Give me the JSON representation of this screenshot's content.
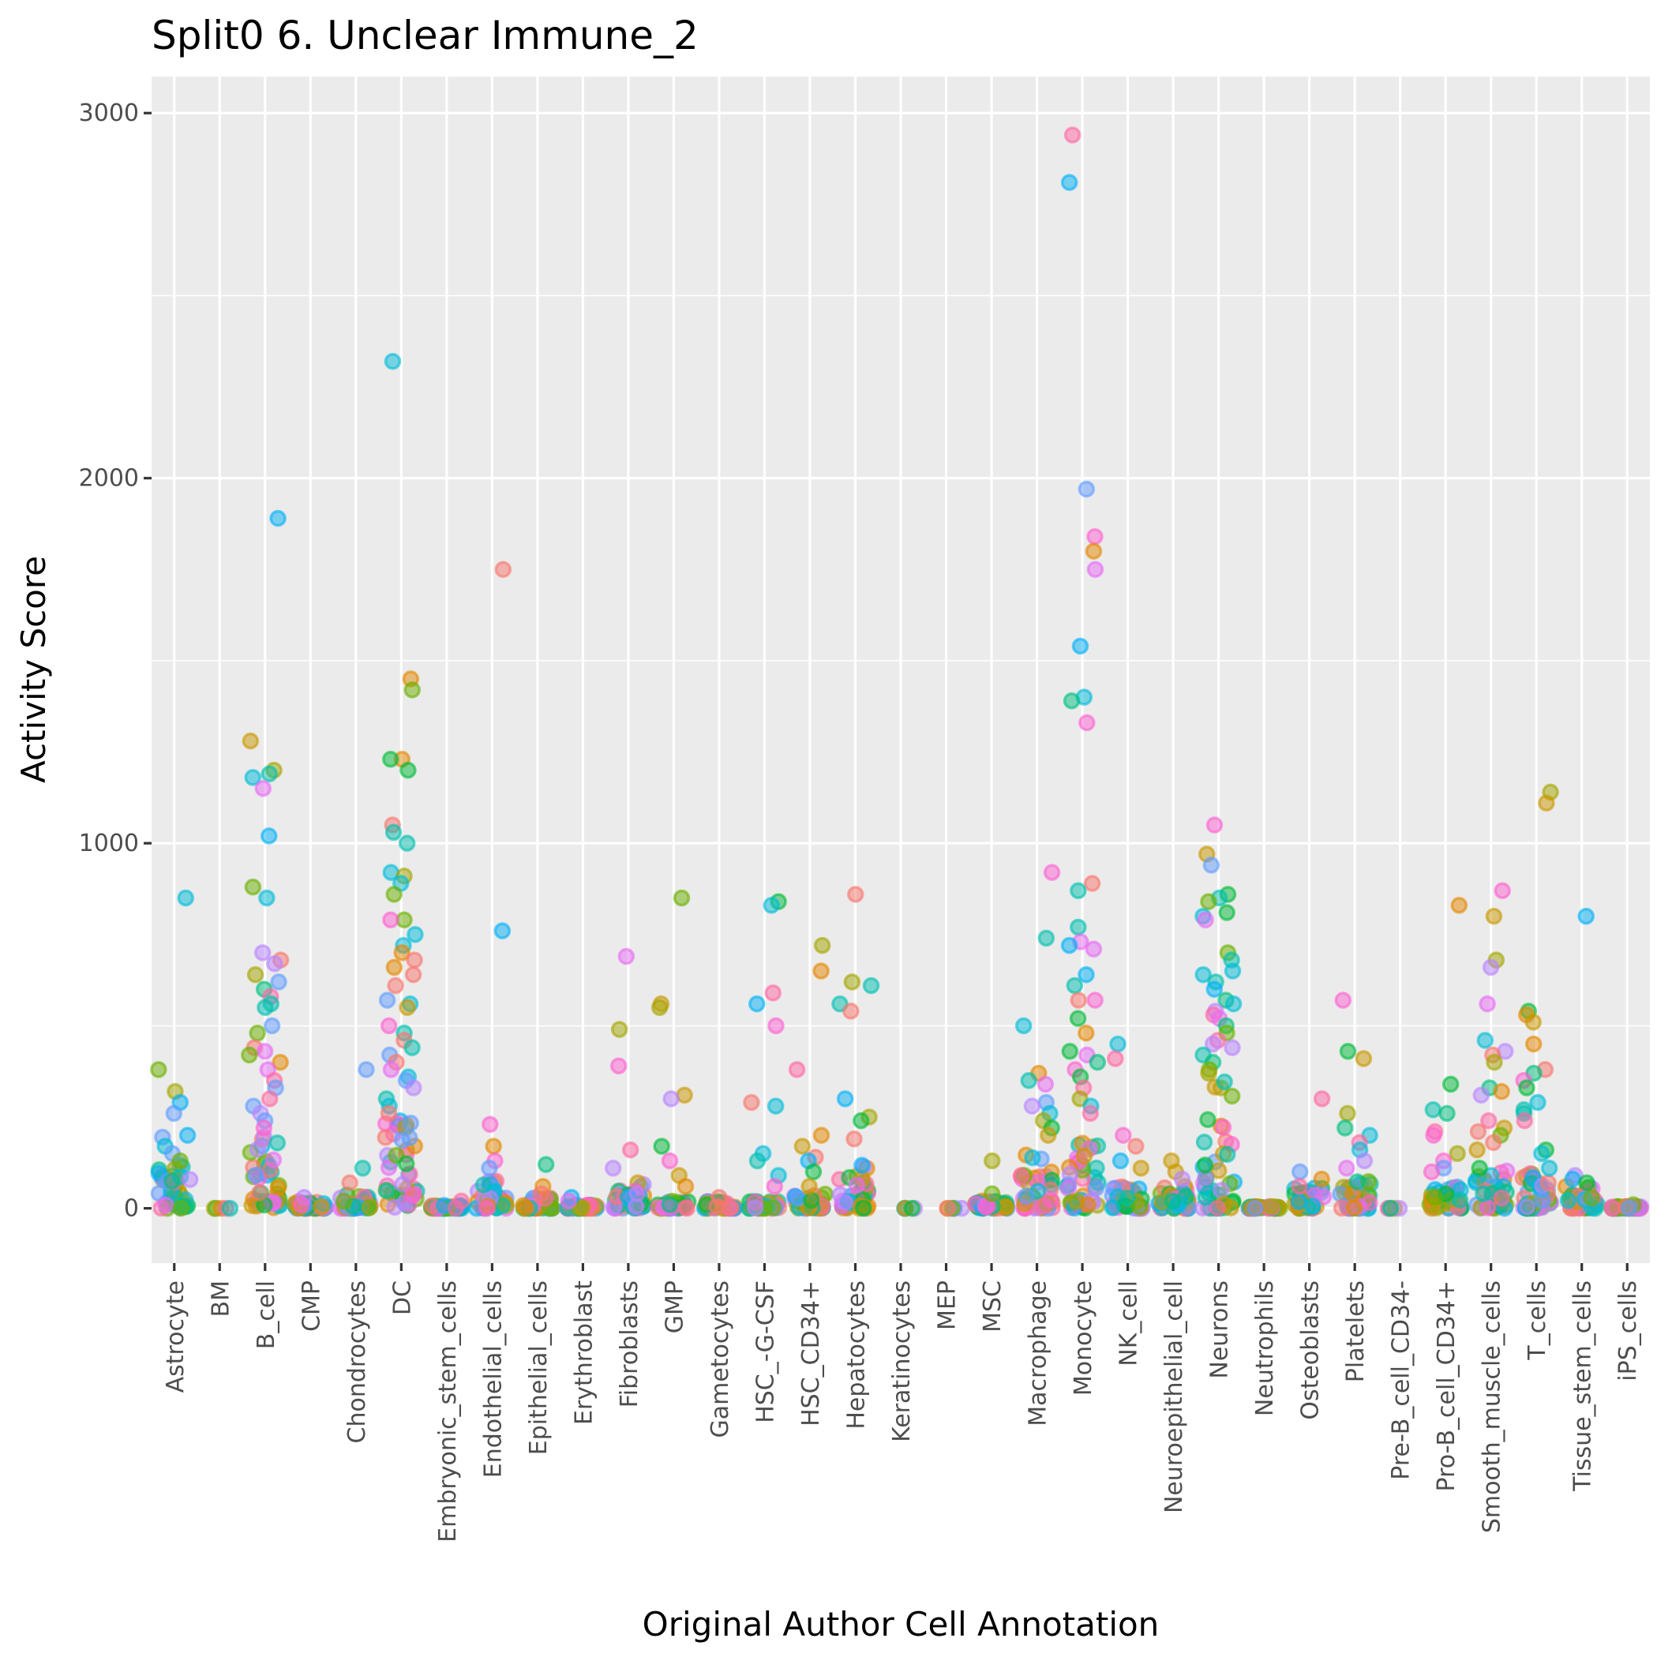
{
  "chart_data": {
    "type": "scatter",
    "subtype": "jitter-strip",
    "title": "Split0 6. Unclear Immune_2",
    "xlabel": "Original Author Cell Annotation",
    "ylabel": "Activity Score",
    "ylim": [
      -150,
      3100
    ],
    "yticks": [
      0,
      1000,
      2000,
      3000
    ],
    "ytick_labels": [
      "0",
      "1000",
      "2000",
      "3000"
    ],
    "grid": true,
    "legend": "none",
    "point_alpha": 0.5,
    "palette": [
      "#F8766D",
      "#E58700",
      "#C99800",
      "#A3A500",
      "#6BB100",
      "#00BA38",
      "#00BF7D",
      "#00C0AF",
      "#00BCD8",
      "#00B0F6",
      "#619CFF",
      "#B983FF",
      "#E76BF3",
      "#FD61D1",
      "#FF67A4"
    ],
    "categories": [
      "Astrocyte",
      "BM",
      "B_cell",
      "CMP",
      "Chondrocytes",
      "DC",
      "Embryonic_stem_cells",
      "Endothelial_cells",
      "Epithelial_cells",
      "Erythroblast",
      "Fibroblasts",
      "GMP",
      "Gametocytes",
      "HSC_-G-CSF",
      "HSC_CD34+",
      "Hepatocytes",
      "Keratinocytes",
      "MEP",
      "MSC",
      "Macrophage",
      "Monocyte",
      "NK_cell",
      "Neuroepithelial_cell",
      "Neurons",
      "Neutrophils",
      "Osteoblasts",
      "Platelets",
      "Pre-B_cell_CD34-",
      "Pro-B_cell_CD34+",
      "Smooth_muscle_cells",
      "T_cells",
      "Tissue_stem_cells",
      "iPS_cells"
    ],
    "series": [
      {
        "category": "Astrocyte",
        "dense_max": 120,
        "outliers": [
          850,
          380,
          320,
          290,
          260,
          200,
          195,
          170,
          150,
          130
        ]
      },
      {
        "category": "BM",
        "dense_max": 0,
        "outliers": [
          0
        ]
      },
      {
        "category": "B_cell",
        "dense_max": 200,
        "outliers": [
          1890,
          1280,
          1200,
          1190,
          1180,
          1150,
          1020,
          880,
          850,
          700,
          680,
          670,
          640,
          620,
          600,
          580,
          560,
          550,
          500,
          480,
          440,
          430,
          420,
          400,
          380,
          350,
          330,
          300,
          280,
          260,
          240,
          220
        ]
      },
      {
        "category": "CMP",
        "dense_max": 20,
        "outliers": [
          30,
          10
        ]
      },
      {
        "category": "Chondrocytes",
        "dense_max": 40,
        "outliers": [
          380,
          110,
          70
        ]
      },
      {
        "category": "DC",
        "dense_max": 250,
        "outliers": [
          2320,
          1450,
          1420,
          1230,
          1230,
          1200,
          1050,
          1030,
          1000,
          920,
          910,
          890,
          860,
          790,
          790,
          750,
          720,
          700,
          680,
          660,
          640,
          610,
          570,
          560,
          550,
          500,
          480,
          460,
          440,
          420,
          400,
          380,
          360,
          350,
          330,
          300,
          280,
          260
        ]
      },
      {
        "category": "Embryonic_stem_cells",
        "dense_max": 10,
        "outliers": [
          20
        ]
      },
      {
        "category": "Endothelial_cells",
        "dense_max": 80,
        "outliers": [
          1750,
          760,
          230,
          170,
          130,
          110
        ]
      },
      {
        "category": "Epithelial_cells",
        "dense_max": 30,
        "outliers": [
          120,
          60,
          40
        ]
      },
      {
        "category": "Erythroblast",
        "dense_max": 10,
        "outliers": [
          30,
          20
        ]
      },
      {
        "category": "Fibroblasts",
        "dense_max": 70,
        "outliers": [
          690,
          490,
          390,
          160,
          110
        ]
      },
      {
        "category": "GMP",
        "dense_max": 20,
        "outliers": [
          850,
          560,
          550,
          310,
          300,
          170,
          130,
          90,
          60
        ]
      },
      {
        "category": "Gametocytes",
        "dense_max": 20,
        "outliers": [
          30
        ]
      },
      {
        "category": "HSC_-G-CSF",
        "dense_max": 20,
        "outliers": [
          840,
          830,
          590,
          560,
          500,
          290,
          280,
          150,
          130,
          90,
          60
        ]
      },
      {
        "category": "HSC_CD34+",
        "dense_max": 40,
        "outliers": [
          720,
          650,
          380,
          200,
          170,
          140,
          130,
          100,
          60
        ]
      },
      {
        "category": "Hepatocytes",
        "dense_max": 120,
        "outliers": [
          860,
          620,
          610,
          560,
          540,
          300,
          250,
          240,
          190
        ]
      },
      {
        "category": "Keratinocytes",
        "dense_max": 0,
        "outliers": [
          0
        ]
      },
      {
        "category": "MEP",
        "dense_max": 0,
        "outliers": [
          0,
          0
        ]
      },
      {
        "category": "MSC",
        "dense_max": 20,
        "outliers": [
          130,
          40
        ]
      },
      {
        "category": "Macrophage",
        "dense_max": 150,
        "outliers": [
          920,
          740,
          500,
          370,
          350,
          340,
          290,
          280,
          260,
          240,
          220,
          200
        ]
      },
      {
        "category": "Monocyte",
        "dense_max": 180,
        "outliers": [
          2940,
          2810,
          1970,
          1840,
          1800,
          1750,
          1540,
          1400,
          1390,
          1330,
          890,
          870,
          770,
          730,
          720,
          710,
          640,
          610,
          570,
          570,
          520,
          480,
          430,
          420,
          400,
          380,
          360,
          330,
          300,
          280,
          260
        ]
      },
      {
        "category": "NK_cell",
        "dense_max": 60,
        "outliers": [
          450,
          410,
          200,
          170,
          130,
          110
        ]
      },
      {
        "category": "Neuroepithelial_cell",
        "dense_max": 60,
        "outliers": [
          130,
          100,
          80
        ]
      },
      {
        "category": "Neurons",
        "dense_max": 350,
        "outliers": [
          1050,
          970,
          940,
          860,
          850,
          840,
          810,
          800,
          790,
          700,
          680,
          650,
          640,
          620,
          600,
          570,
          560,
          540,
          530,
          520,
          500,
          480,
          460,
          450,
          440,
          420,
          400,
          380,
          370
        ]
      },
      {
        "category": "Neutrophils",
        "dense_max": 5,
        "outliers": [
          5,
          0
        ]
      },
      {
        "category": "Osteoblasts",
        "dense_max": 60,
        "outliers": [
          300,
          100,
          80,
          60
        ]
      },
      {
        "category": "Platelets",
        "dense_max": 80,
        "outliers": [
          570,
          430,
          410,
          260,
          220,
          200,
          180,
          160,
          130,
          110
        ]
      },
      {
        "category": "Pre-B_cell_CD34-",
        "dense_max": 0,
        "outliers": [
          0
        ]
      },
      {
        "category": "Pro-B_cell_CD34+",
        "dense_max": 60,
        "outliers": [
          830,
          340,
          270,
          260,
          210,
          200,
          150,
          130,
          110,
          100
        ]
      },
      {
        "category": "Smooth_muscle_cells",
        "dense_max": 120,
        "outliers": [
          870,
          800,
          680,
          660,
          560,
          460,
          430,
          420,
          400,
          330,
          320,
          310,
          240,
          220,
          210,
          200,
          180,
          160
        ]
      },
      {
        "category": "T_cells",
        "dense_max": 100,
        "outliers": [
          1140,
          1110,
          540,
          530,
          510,
          450,
          380,
          370,
          350,
          330,
          290,
          270,
          260,
          240,
          160,
          150,
          110
        ]
      },
      {
        "category": "Tissue_stem_cells",
        "dense_max": 60,
        "outliers": [
          800,
          90,
          80,
          70
        ]
      },
      {
        "category": "iPS_cells",
        "dense_max": 5,
        "outliers": [
          10,
          5,
          0
        ]
      }
    ]
  }
}
